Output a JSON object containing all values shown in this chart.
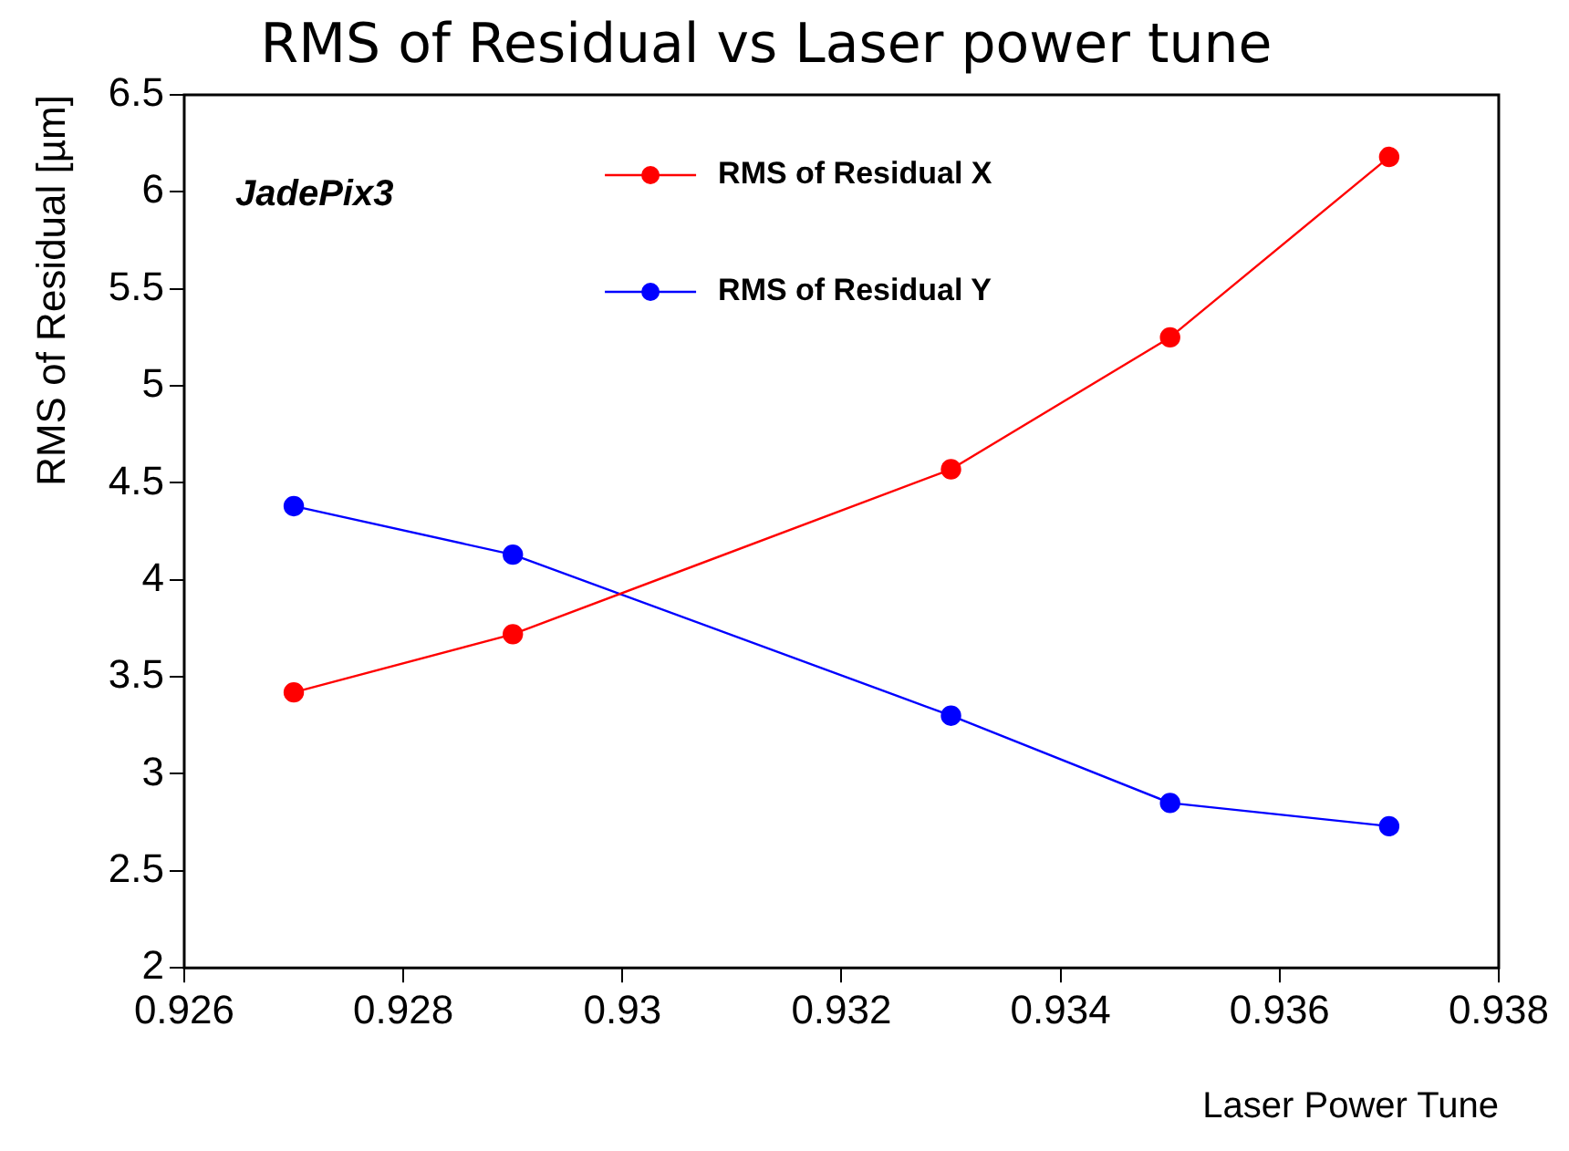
{
  "chart_data": {
    "type": "line",
    "title": "RMS of Residual vs Laser power tune",
    "xlabel": "Laser Power Tune",
    "ylabel": "RMS of Residual [µm]",
    "annotations": [
      "JadePix3"
    ],
    "x": [
      0.927,
      0.929,
      0.933,
      0.935,
      0.937
    ],
    "series": [
      {
        "name": "RMS of Residual X",
        "color": "#ff0000",
        "values": [
          3.42,
          3.72,
          4.57,
          5.25,
          6.18
        ]
      },
      {
        "name": "RMS of Residual Y",
        "color": "#0000ff",
        "values": [
          4.38,
          4.13,
          3.3,
          2.85,
          2.73
        ]
      }
    ],
    "xlim": [
      0.926,
      0.938
    ],
    "xticks": [
      0.926,
      0.928,
      0.93,
      0.932,
      0.934,
      0.936,
      0.938
    ],
    "ylim": [
      2,
      6.5
    ],
    "yticks": [
      2,
      2.5,
      3,
      3.5,
      4,
      4.5,
      5,
      5.5,
      6,
      6.5
    ],
    "grid": false,
    "legend": "top",
    "marker": "circle",
    "line_style": "solid"
  }
}
